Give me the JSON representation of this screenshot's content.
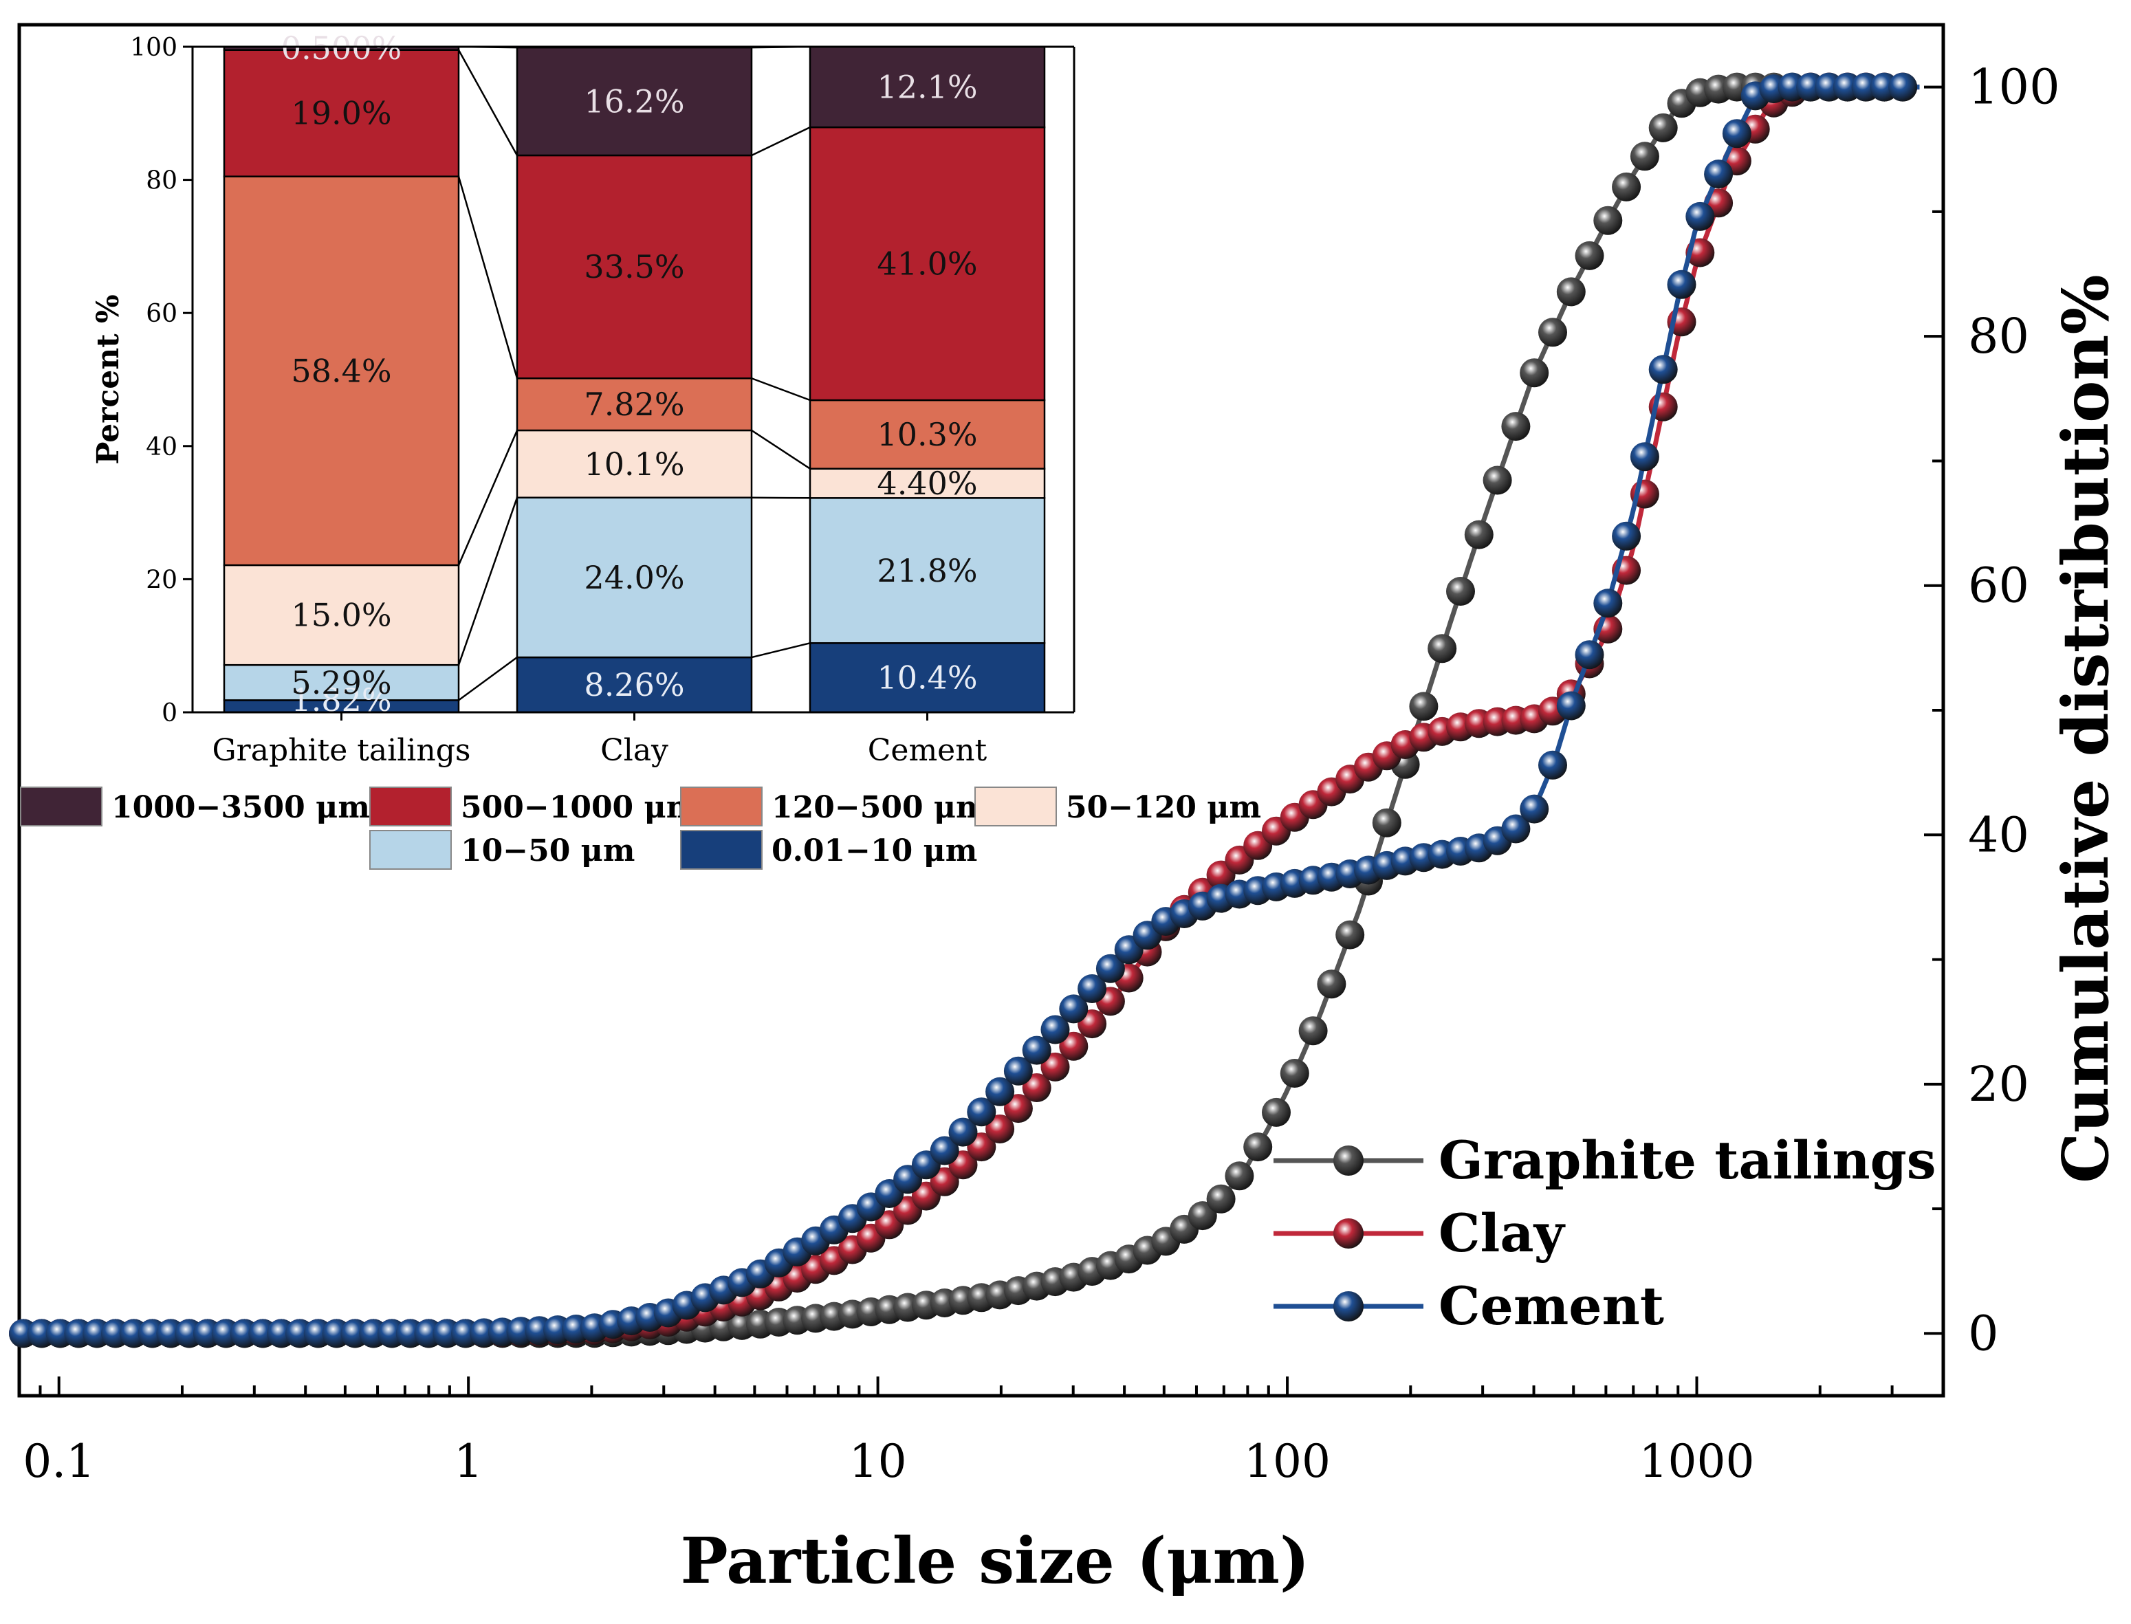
{
  "chart_data": [
    {
      "type": "line",
      "title": "",
      "xlabel": "Particle size (μm)",
      "ylabel": "Cumulative distribution%",
      "xscale": "log",
      "xlim": [
        0.08,
        4000
      ],
      "ylim": [
        -5,
        105
      ],
      "x_tick_labels": [
        "0.1",
        "1",
        "10",
        "100",
        "1000"
      ],
      "x_tick_values": [
        0.1,
        1,
        10,
        100,
        1000
      ],
      "y_tick_labels": [
        "0",
        "20",
        "40",
        "60",
        "80",
        "100"
      ],
      "y_tick_values": [
        0,
        20,
        40,
        60,
        80,
        100
      ],
      "legend_position": "bottom-right",
      "series": [
        {
          "name": "Graphite tailings",
          "color": "#555555",
          "points": [
            [
              0.08,
              0
            ],
            [
              1,
              0
            ],
            [
              2,
              0
            ],
            [
              3,
              0.2
            ],
            [
              5,
              0.7
            ],
            [
              8,
              1.4
            ],
            [
              10,
              1.8
            ],
            [
              15,
              2.5
            ],
            [
              20,
              3.1
            ],
            [
              30,
              4.5
            ],
            [
              40,
              5.8
            ],
            [
              50,
              7.3
            ],
            [
              60,
              9
            ],
            [
              70,
              11
            ],
            [
              80,
              13.5
            ],
            [
              90,
              16.5
            ],
            [
              100,
              19.5
            ],
            [
              120,
              25.5
            ],
            [
              150,
              34
            ],
            [
              200,
              47
            ],
            [
              250,
              57
            ],
            [
              300,
              65
            ],
            [
              400,
              77
            ],
            [
              500,
              84
            ],
            [
              600,
              89
            ],
            [
              700,
              93
            ],
            [
              800,
              96
            ],
            [
              900,
              98.5
            ],
            [
              1000,
              99.5
            ],
            [
              1200,
              100
            ],
            [
              3500,
              100
            ]
          ]
        },
        {
          "name": "Clay",
          "color": "#c0283a",
          "points": [
            [
              0.08,
              0
            ],
            [
              1,
              0
            ],
            [
              2,
              0.2
            ],
            [
              3,
              0.8
            ],
            [
              5,
              2.8
            ],
            [
              8,
              6
            ],
            [
              10,
              8
            ],
            [
              15,
              12.5
            ],
            [
              20,
              16.5
            ],
            [
              30,
              23
            ],
            [
              40,
              28
            ],
            [
              50,
              32.5
            ],
            [
              70,
              37
            ],
            [
              100,
              41
            ],
            [
              150,
              45
            ],
            [
              200,
              47.5
            ],
            [
              250,
              48.5
            ],
            [
              300,
              49
            ],
            [
              400,
              49.3
            ],
            [
              450,
              50
            ],
            [
              500,
              51.5
            ],
            [
              600,
              56
            ],
            [
              700,
              63
            ],
            [
              800,
              72
            ],
            [
              900,
              80
            ],
            [
              1000,
              86
            ],
            [
              1200,
              93
            ],
            [
              1500,
              98.5
            ],
            [
              1800,
              100
            ],
            [
              3500,
              100
            ]
          ]
        },
        {
          "name": "Cement",
          "color": "#1f4f94",
          "points": [
            [
              0.08,
              0
            ],
            [
              1,
              0
            ],
            [
              2,
              0.4
            ],
            [
              3,
              1.5
            ],
            [
              5,
              4.5
            ],
            [
              8,
              8.5
            ],
            [
              10,
              10.5
            ],
            [
              15,
              15
            ],
            [
              20,
              19.5
            ],
            [
              30,
              26
            ],
            [
              40,
              30.5
            ],
            [
              50,
              33
            ],
            [
              70,
              35
            ],
            [
              100,
              36
            ],
            [
              150,
              37
            ],
            [
              200,
              38
            ],
            [
              300,
              39
            ],
            [
              350,
              40
            ],
            [
              400,
              42
            ],
            [
              450,
              46
            ],
            [
              500,
              51
            ],
            [
              600,
              58
            ],
            [
              700,
              66
            ],
            [
              800,
              75
            ],
            [
              900,
              83
            ],
            [
              1000,
              89
            ],
            [
              1200,
              95
            ],
            [
              1400,
              99.5
            ],
            [
              1600,
              100
            ],
            [
              3500,
              100
            ]
          ]
        }
      ]
    },
    {
      "type": "bar",
      "stacked": true,
      "title": "",
      "xlabel": "",
      "ylabel": "Percent %",
      "ylim": [
        0,
        100
      ],
      "y_tick_labels": [
        "0",
        "20",
        "40",
        "60",
        "80",
        "100"
      ],
      "y_tick_values": [
        0,
        20,
        40,
        60,
        80,
        100
      ],
      "categories": [
        "Graphite tailings",
        "Clay",
        "Cement"
      ],
      "series": [
        {
          "name": "0.01−10 μm",
          "color": "#173f7b",
          "values": [
            1.82,
            8.26,
            10.4
          ],
          "labels": [
            "1.82%",
            "8.26%",
            "10.4%"
          ]
        },
        {
          "name": "10−50 μm",
          "color": "#b6d5e8",
          "values": [
            5.29,
            24.0,
            21.8
          ],
          "labels": [
            "5.29%",
            "24.0%",
            "21.8%"
          ]
        },
        {
          "name": "50−120 μm",
          "color": "#fbe3d6",
          "values": [
            15.0,
            10.1,
            4.4
          ],
          "labels": [
            "15.0%",
            "10.1%",
            "4.40%"
          ]
        },
        {
          "name": "120−500 μm",
          "color": "#db6f55",
          "values": [
            58.4,
            7.82,
            10.3
          ],
          "labels": [
            "58.4%",
            "7.82%",
            "10.3%"
          ]
        },
        {
          "name": "500−1000 μm",
          "color": "#b3212e",
          "values": [
            19.0,
            33.5,
            41.0
          ],
          "labels": [
            "19.0%",
            "33.5%",
            "41.0%"
          ]
        },
        {
          "name": "1000−3500 μm",
          "color": "#402436",
          "values": [
            0.5,
            16.2,
            12.1
          ],
          "labels": [
            "0.500%",
            "16.2%",
            "12.1%"
          ]
        }
      ],
      "legend_order": [
        "1000−3500 μm",
        "500−1000 μm",
        "120−500 μm",
        "50−120 μm",
        "10−50 μm",
        "0.01−10 μm"
      ],
      "legend_position": "below"
    }
  ]
}
